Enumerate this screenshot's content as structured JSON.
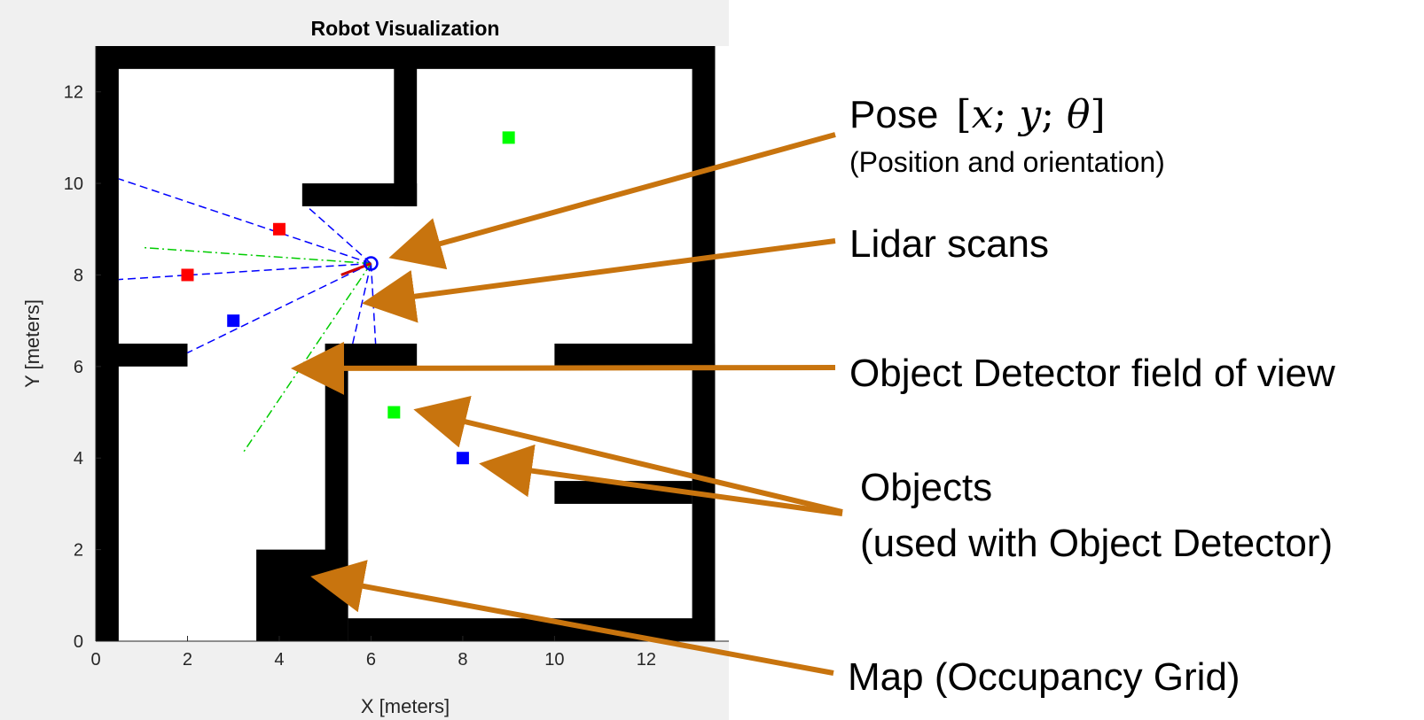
{
  "plot": {
    "title": "Robot Visualization",
    "xlabel": "X [meters]",
    "ylabel": "Y [meters]",
    "xlim": [
      0,
      13.8
    ],
    "ylim": [
      0,
      13
    ],
    "xticks": [
      "0",
      "2",
      "4",
      "6",
      "8",
      "10",
      "12"
    ],
    "yticks": [
      "0",
      "2",
      "4",
      "6",
      "8",
      "10",
      "12"
    ],
    "background": "#f0f0f0",
    "wall_color": "#000000"
  },
  "map_walls": [
    {
      "x": [
        0,
        13.5
      ],
      "y": [
        12.5,
        13
      ]
    },
    {
      "x": [
        0,
        0.5
      ],
      "y": [
        0,
        13
      ]
    },
    {
      "x": [
        13,
        13.5
      ],
      "y": [
        0,
        13
      ]
    },
    {
      "x": [
        5.5,
        13.5
      ],
      "y": [
        0,
        0.5
      ]
    },
    {
      "x": [
        3.5,
        5.5
      ],
      "y": [
        0,
        2
      ]
    },
    {
      "x": [
        5,
        5.5
      ],
      "y": [
        0,
        6.5
      ]
    },
    {
      "x": [
        5,
        7
      ],
      "y": [
        6,
        6.5
      ]
    },
    {
      "x": [
        0,
        2
      ],
      "y": [
        6,
        6.5
      ]
    },
    {
      "x": [
        10,
        13.5
      ],
      "y": [
        6,
        6.5
      ]
    },
    {
      "x": [
        10,
        13
      ],
      "y": [
        3,
        3.5
      ]
    },
    {
      "x": [
        6.5,
        7
      ],
      "y": [
        9.5,
        13
      ]
    },
    {
      "x": [
        4.5,
        7
      ],
      "y": [
        9.5,
        10
      ]
    }
  ],
  "robot": {
    "x": 6,
    "y": 8.25,
    "heading_end": [
      5.35,
      8.0
    ],
    "color": "#0000ff",
    "heading_color": "#cc0000"
  },
  "lidar_scans": {
    "color": "#0000ff",
    "end_points": [
      [
        0.5,
        10.1
      ],
      [
        4.6,
        9.5
      ],
      [
        0.5,
        7.9
      ],
      [
        2,
        6.3
      ],
      [
        5.6,
        6.5
      ],
      [
        6.1,
        6.5
      ]
    ]
  },
  "detector_fov": {
    "color": "#00cc00",
    "end_points": [
      [
        1.0,
        8.6
      ],
      [
        3.2,
        4.1
      ]
    ]
  },
  "objects": [
    {
      "x": 9,
      "y": 11,
      "color": "#00ff00"
    },
    {
      "x": 4,
      "y": 9,
      "color": "#ff0000"
    },
    {
      "x": 2,
      "y": 8,
      "color": "#ff0000"
    },
    {
      "x": 3,
      "y": 7,
      "color": "#0000ff"
    },
    {
      "x": 6.5,
      "y": 5,
      "color": "#00ff00"
    },
    {
      "x": 8,
      "y": 4,
      "color": "#0000ff"
    }
  ],
  "annotations": {
    "arrow_color": "#c8740e",
    "pose_label": "Pose",
    "pose_math": {
      "open": "[",
      "x": "x",
      "sep1": "; ",
      "y": "y",
      "sep2": "; ",
      "theta": "θ",
      "close": "]"
    },
    "pose_sub": "(Position and orientation)",
    "lidar_label": "Lidar scans",
    "fov_label": "Object Detector field of view",
    "objects_label": "Objects",
    "objects_sub": "(used with Object Detector)",
    "map_label": "Map (Occupancy Grid)"
  }
}
